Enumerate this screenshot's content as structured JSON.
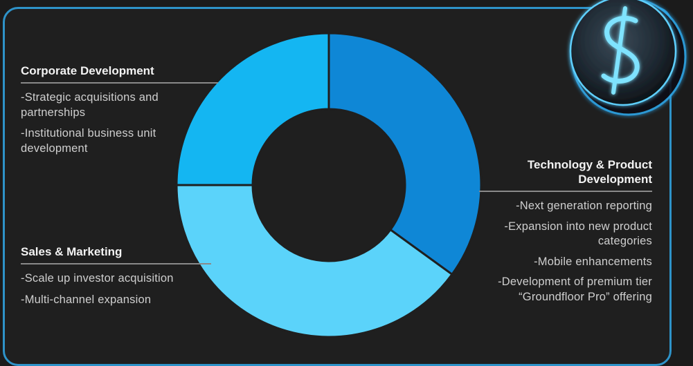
{
  "chart_data": {
    "type": "pie",
    "categories": [
      "Technology & Product Development",
      "Sales & Marketing",
      "Corporate Development"
    ],
    "values": [
      35,
      40,
      25
    ],
    "colors": [
      "#0f87d6",
      "#5bd3fa",
      "#14b6f2"
    ]
  },
  "sections": {
    "corporate": {
      "title": "Corporate Development",
      "items": [
        "-Strategic acquisitions and partnerships",
        "-Institutional business unit development"
      ]
    },
    "sales": {
      "title": "Sales & Marketing",
      "items": [
        "-Scale up investor acquisition",
        "-Multi-channel expansion"
      ]
    },
    "tech": {
      "title": "Technology & Product Development",
      "items": [
        "-Next generation reporting",
        "-Expansion into new product categories",
        "-Mobile enhancements",
        "-Development of premium tier “Groundfloor Pro” offering"
      ]
    }
  },
  "colors": {
    "accent": "#2e93c9",
    "background": "#1b1b1b"
  },
  "icons": {
    "decoration": "dollar-coin-icon"
  }
}
